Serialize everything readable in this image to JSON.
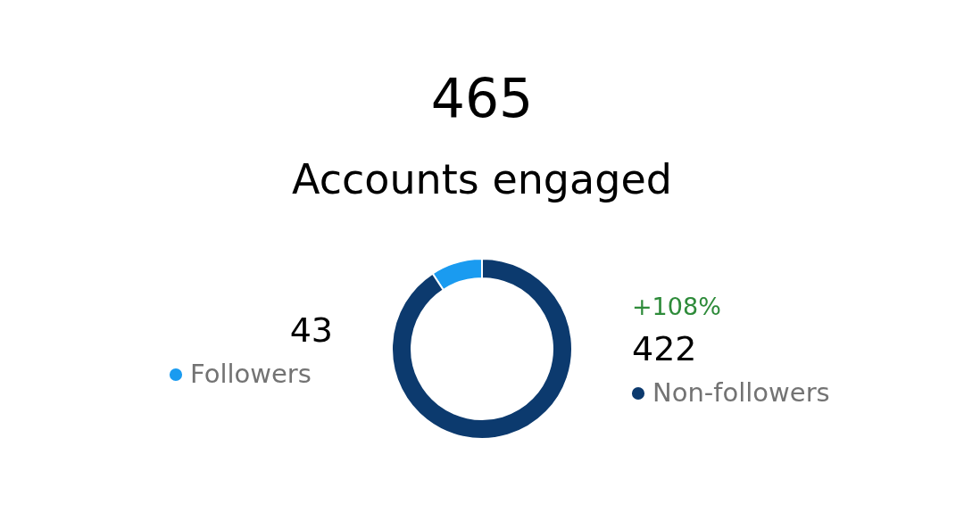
{
  "chart_data": {
    "type": "donut",
    "title": "465",
    "subtitle": "Accounts engaged",
    "categories": [
      "Followers",
      "Non-followers"
    ],
    "values": [
      43,
      422
    ],
    "colors": [
      "#1a9bf0",
      "#0c3a6e"
    ],
    "data_labels": true,
    "legend": "bottom",
    "annotations": [
      "+108%"
    ]
  }
}
